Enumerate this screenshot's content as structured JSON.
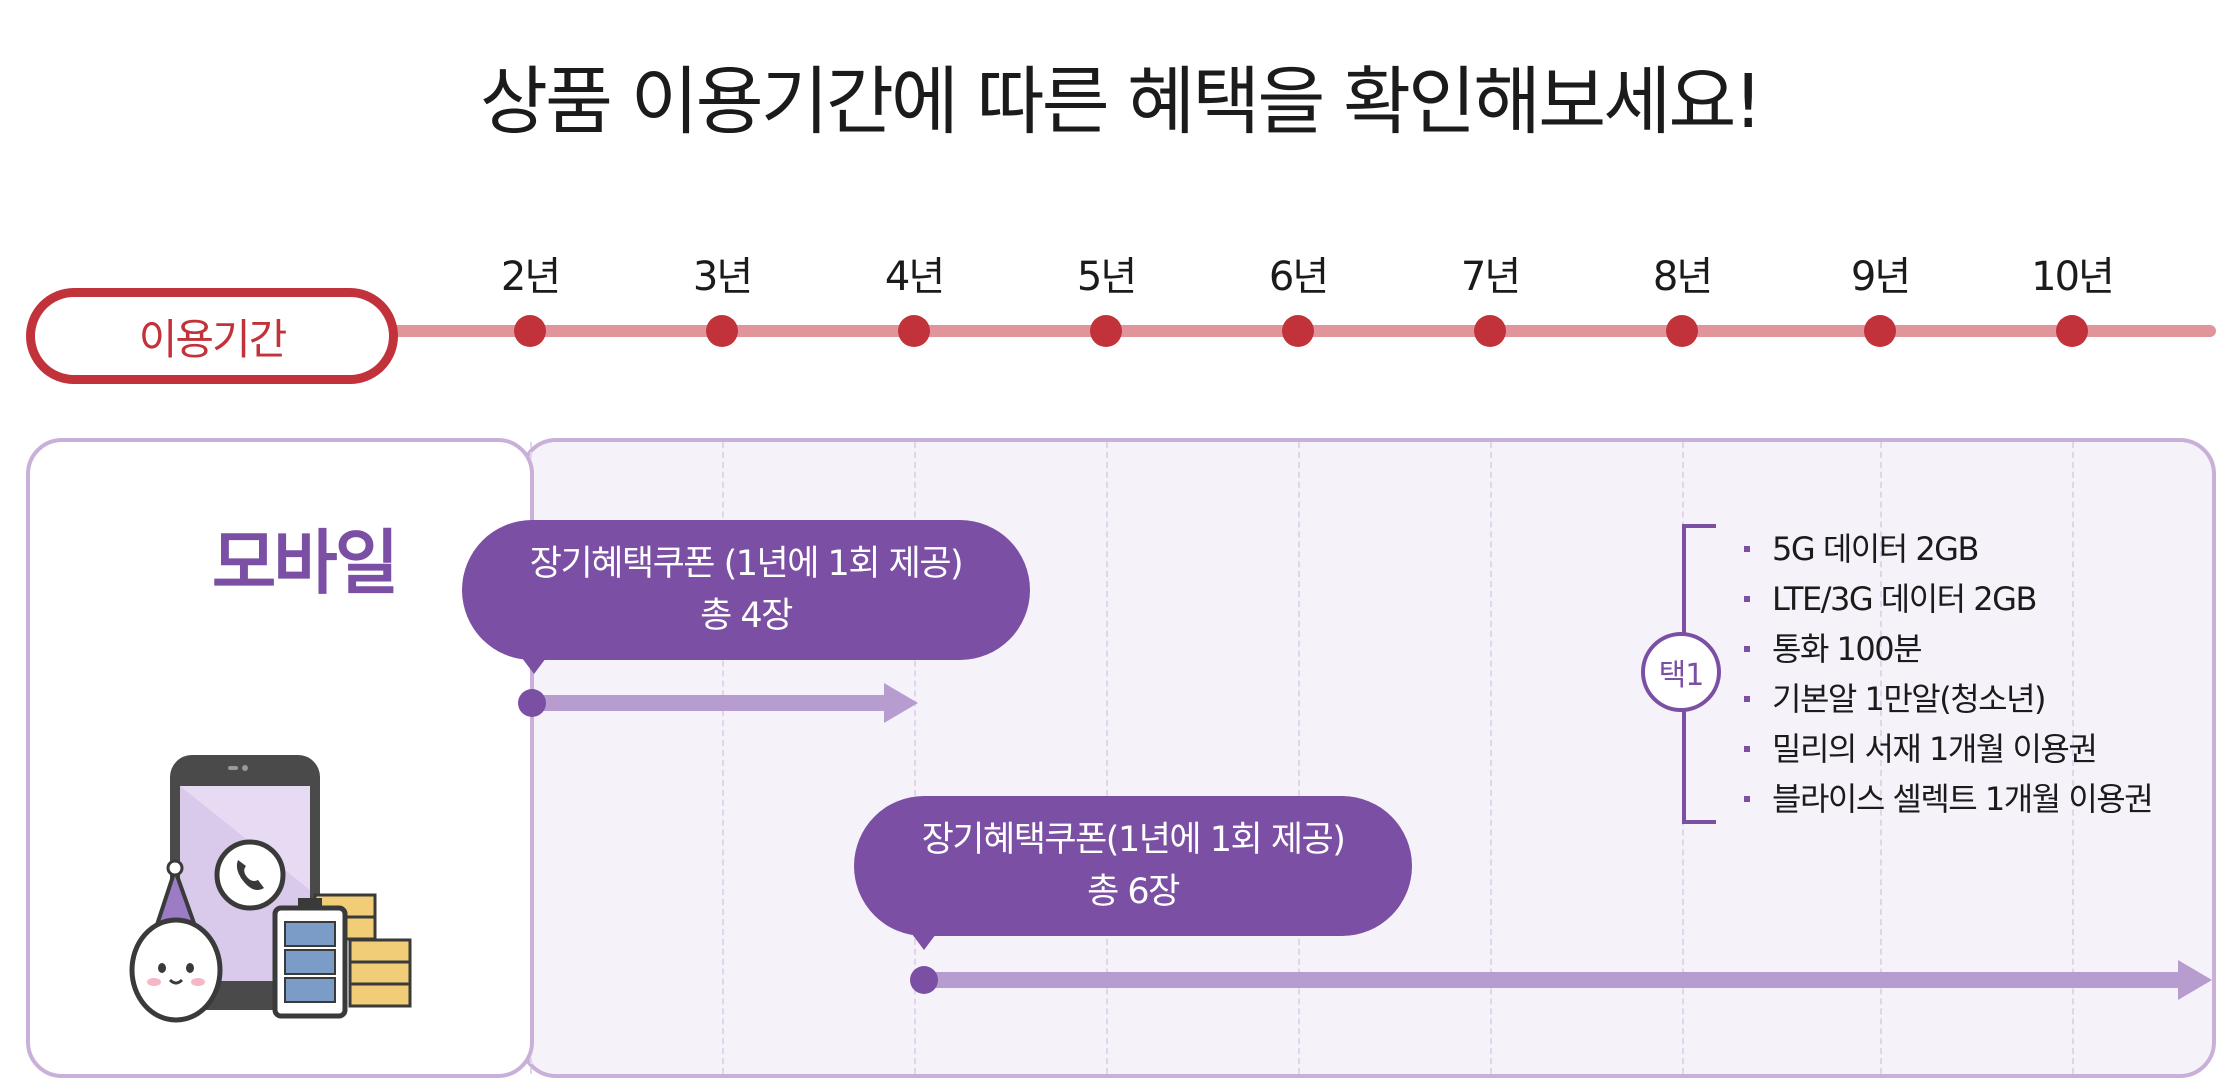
{
  "title": "상품 이용기간에 따른 혜택을 확인해보세요!",
  "timeline": {
    "label": "이용기간",
    "years": [
      "2년",
      "3년",
      "4년",
      "5년",
      "6년",
      "7년",
      "8년",
      "9년",
      "10년"
    ]
  },
  "category": "모바일",
  "coupons": [
    {
      "line1": "장기혜택쿠폰 (1년에 1회 제공)",
      "line2": "총 4장"
    },
    {
      "line1": "장기혜택쿠폰(1년에 1회 제공)",
      "line2": "총 6장"
    }
  ],
  "options": {
    "badge": "택1",
    "items": [
      "5G 데이터 2GB",
      "LTE/3G 데이터 2GB",
      "통화 100분",
      "기본알 1만알(청소년)",
      "밀리의 서재 1개월 이용권",
      "블라이스 셀렉트 1개월 이용권"
    ]
  },
  "colors": {
    "accent_red": "#c2323a",
    "track": "#e0959a",
    "purple": "#7b4fa3",
    "light_purple": "#b79ccf",
    "panel_bg": "#f6f2fa"
  },
  "icons": [
    "phone-icon",
    "battery-icon",
    "coin-stack-icon",
    "mascot-icon"
  ]
}
